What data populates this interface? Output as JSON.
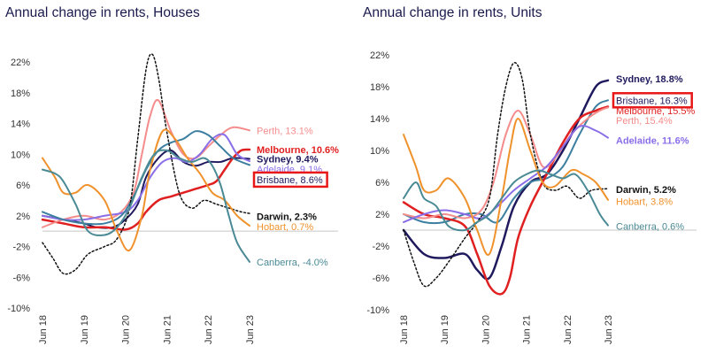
{
  "chart_data": [
    {
      "type": "line",
      "title": "Annual change in rents, Houses",
      "xlabel": "",
      "ylabel": "",
      "ylim": [
        -10,
        24
      ],
      "yticks": [
        22,
        18,
        14,
        10,
        6,
        2,
        -2,
        -6,
        -10
      ],
      "ytick_labels": [
        "22%",
        "18%",
        "14%",
        "10%",
        "6%",
        "2%",
        "-2%",
        "-6%",
        "-10%"
      ],
      "xlim": [
        2018.5,
        2023.5
      ],
      "xticks": [
        2018.5,
        2019.5,
        2020.5,
        2021.5,
        2022.5,
        2023.5
      ],
      "xtick_labels": [
        "Jun 18",
        "Jun 19",
        "Jun 20",
        "Jun 21",
        "Jun 22",
        "Jun 23"
      ],
      "zero_line": true,
      "grid": false,
      "series": [
        {
          "name": "Sydney",
          "color": "#1f1a5e",
          "style": "solid",
          "width": 2,
          "x": [
            2018.5,
            2019.0,
            2019.5,
            2019.8,
            2020.2,
            2020.5,
            2020.8,
            2021.0,
            2021.3,
            2021.6,
            2021.9,
            2022.2,
            2022.5,
            2022.8,
            2023.1,
            2023.5
          ],
          "values": [
            2.0,
            1.5,
            1.0,
            0.5,
            0.5,
            1.5,
            3.5,
            7.0,
            9.5,
            10.5,
            9.0,
            8.5,
            9.0,
            9.0,
            9.5,
            9.4
          ]
        },
        {
          "name": "Melbourne",
          "color": "#e02020",
          "style": "solid",
          "width": 2.5,
          "x": [
            2018.5,
            2019.0,
            2019.5,
            2020.0,
            2020.5,
            2020.8,
            2021.0,
            2021.3,
            2021.6,
            2021.9,
            2022.2,
            2022.5,
            2022.7,
            2022.9,
            2023.1,
            2023.3,
            2023.5
          ],
          "values": [
            1.5,
            1.0,
            0.5,
            0.5,
            0.2,
            1.0,
            2.5,
            4.0,
            4.5,
            5.0,
            5.5,
            6.0,
            6.5,
            8.0,
            9.5,
            10.5,
            10.6
          ]
        },
        {
          "name": "Perth",
          "color": "#f48c8c",
          "style": "solid",
          "width": 2,
          "x": [
            2018.5,
            2019.0,
            2019.5,
            2020.0,
            2020.4,
            2020.7,
            2020.9,
            2021.1,
            2021.3,
            2021.6,
            2021.9,
            2022.2,
            2022.5,
            2022.8,
            2023.1,
            2023.5
          ],
          "values": [
            0.5,
            1.5,
            2.0,
            1.5,
            2.5,
            5.0,
            10.0,
            15.0,
            17.0,
            13.0,
            10.0,
            9.5,
            11.0,
            12.5,
            13.5,
            13.1
          ]
        },
        {
          "name": "Adelaide",
          "color": "#8a6ee8",
          "style": "solid",
          "width": 2,
          "x": [
            2018.5,
            2019.0,
            2019.5,
            2020.0,
            2020.5,
            2020.8,
            2021.1,
            2021.4,
            2021.7,
            2022.0,
            2022.3,
            2022.6,
            2022.9,
            2023.2,
            2023.5
          ],
          "values": [
            2.0,
            1.5,
            1.5,
            2.0,
            2.5,
            4.0,
            7.0,
            9.0,
            9.5,
            9.0,
            10.0,
            12.0,
            12.5,
            10.0,
            9.1
          ]
        },
        {
          "name": "Brisbane",
          "color": "#3d7fa0",
          "style": "solid",
          "width": 2,
          "x": [
            2018.5,
            2019.0,
            2019.5,
            2020.0,
            2020.4,
            2020.7,
            2021.0,
            2021.3,
            2021.6,
            2021.9,
            2022.2,
            2022.5,
            2022.8,
            2023.1,
            2023.5
          ],
          "values": [
            2.5,
            1.5,
            1.0,
            1.0,
            2.0,
            4.5,
            8.0,
            10.5,
            11.5,
            12.0,
            13.0,
            12.5,
            11.0,
            9.5,
            8.6
          ]
        },
        {
          "name": "Darwin",
          "color": "#111111",
          "style": "dotted",
          "width": 1.5,
          "x": [
            2018.5,
            2018.75,
            2019.0,
            2019.3,
            2019.6,
            2020.0,
            2020.3,
            2020.6,
            2020.8,
            2021.0,
            2021.15,
            2021.3,
            2021.5,
            2021.8,
            2022.1,
            2022.4,
            2022.7,
            2023.0,
            2023.3,
            2023.5
          ],
          "values": [
            -1.5,
            -3.5,
            -5.5,
            -5.0,
            -3.0,
            -2.0,
            -1.0,
            3.0,
            12.0,
            21.0,
            23.0,
            20.0,
            13.0,
            5.0,
            3.0,
            4.0,
            3.5,
            3.0,
            2.5,
            2.3
          ]
        },
        {
          "name": "Hobart",
          "color": "#f0922c",
          "style": "solid",
          "width": 2,
          "x": [
            2018.5,
            2018.8,
            2019.0,
            2019.3,
            2019.6,
            2020.0,
            2020.3,
            2020.6,
            2020.9,
            2021.1,
            2021.4,
            2021.7,
            2022.0,
            2022.3,
            2022.6,
            2022.9,
            2023.2,
            2023.5
          ],
          "values": [
            9.5,
            7.0,
            5.0,
            5.0,
            6.0,
            4.0,
            0.0,
            -2.5,
            2.0,
            8.0,
            13.0,
            12.0,
            9.5,
            7.5,
            5.0,
            4.0,
            2.0,
            0.7
          ]
        },
        {
          "name": "Canberra",
          "color": "#4a8a95",
          "style": "solid",
          "width": 2,
          "x": [
            2018.5,
            2018.8,
            2019.0,
            2019.3,
            2019.6,
            2020.0,
            2020.3,
            2020.6,
            2020.9,
            2021.2,
            2021.5,
            2021.8,
            2022.1,
            2022.4,
            2022.6,
            2022.8,
            2023.0,
            2023.2,
            2023.5
          ],
          "values": [
            8.0,
            7.5,
            6.5,
            3.5,
            0.0,
            -0.5,
            0.5,
            3.0,
            7.0,
            10.0,
            10.5,
            9.5,
            9.0,
            9.5,
            8.5,
            6.0,
            2.0,
            -1.5,
            -4.0
          ]
        }
      ],
      "end_labels": [
        {
          "text": "Perth, 13.1%",
          "color": "#f48c8c",
          "bold": false,
          "ypos": 13.1
        },
        {
          "text": "Melbourne, 10.6%",
          "color": "#e02020",
          "bold": true,
          "ypos": 10.6
        },
        {
          "text": "Sydney, 9.4%",
          "color": "#1f1a5e",
          "bold": true,
          "ypos": 9.4
        },
        {
          "text": "Adelaide, 9.1%",
          "color": "#8a6ee8",
          "bold": false,
          "ypos": 8.1
        },
        {
          "text": "Brisbane, 8.6%",
          "color": "#1f1a5e",
          "bold": false,
          "ypos": 6.7,
          "boxed": true
        },
        {
          "text": "Darwin, 2.3%",
          "color": "#111111",
          "bold": true,
          "ypos": 1.9
        },
        {
          "text": "Hobart, 0.7%",
          "color": "#f0922c",
          "bold": false,
          "ypos": 0.6
        },
        {
          "text": "Canberra, -4.0%",
          "color": "#4a8a95",
          "bold": false,
          "ypos": -4.0
        }
      ]
    },
    {
      "type": "line",
      "title": "Annual change in rents, Units",
      "xlabel": "",
      "ylabel": "",
      "ylim": [
        -10,
        22
      ],
      "yticks": [
        22,
        18,
        14,
        10,
        6,
        2,
        -2,
        -6,
        -10
      ],
      "ytick_labels": [
        "22%",
        "18%",
        "14%",
        "10%",
        "6%",
        "2%",
        "-2%",
        "-6%",
        "-10%"
      ],
      "xlim": [
        2018.5,
        2023.5
      ],
      "xticks": [
        2018.5,
        2019.5,
        2020.5,
        2021.5,
        2022.5,
        2023.5
      ],
      "xtick_labels": [
        "Jun 18",
        "Jun 19",
        "Jun 20",
        "Jun 21",
        "Jun 22",
        "Jun 23"
      ],
      "zero_line": true,
      "grid": false,
      "series": [
        {
          "name": "Sydney",
          "color": "#1f1a5e",
          "style": "solid",
          "width": 2.5,
          "x": [
            2018.5,
            2019.0,
            2019.5,
            2020.0,
            2020.3,
            2020.6,
            2020.9,
            2021.2,
            2021.6,
            2022.0,
            2022.4,
            2022.8,
            2023.2,
            2023.5
          ],
          "values": [
            0.0,
            -3.0,
            -3.5,
            -3.0,
            -5.0,
            -6.0,
            -2.0,
            3.0,
            6.0,
            7.0,
            10.0,
            14.0,
            18.0,
            18.8
          ]
        },
        {
          "name": "Brisbane",
          "color": "#3d7fa0",
          "style": "solid",
          "width": 2,
          "x": [
            2018.5,
            2019.0,
            2019.5,
            2020.0,
            2020.4,
            2020.8,
            2021.2,
            2021.6,
            2022.0,
            2022.4,
            2022.8,
            2023.2,
            2023.5
          ],
          "values": [
            2.0,
            1.0,
            1.0,
            2.0,
            2.0,
            1.0,
            4.0,
            6.0,
            6.5,
            8.0,
            12.0,
            15.5,
            16.3
          ]
        },
        {
          "name": "Melbourne",
          "color": "#e02020",
          "style": "solid",
          "width": 2.5,
          "x": [
            2018.5,
            2019.0,
            2019.5,
            2020.0,
            2020.3,
            2020.6,
            2020.9,
            2021.1,
            2021.3,
            2021.6,
            2022.0,
            2022.4,
            2022.8,
            2023.2,
            2023.5
          ],
          "values": [
            3.5,
            2.0,
            1.5,
            0.5,
            -3.0,
            -7.0,
            -8.0,
            -6.0,
            -1.0,
            3.0,
            7.0,
            11.0,
            14.0,
            15.0,
            15.5
          ]
        },
        {
          "name": "Perth",
          "color": "#f48c8c",
          "style": "solid",
          "width": 2,
          "x": [
            2018.5,
            2019.0,
            2019.5,
            2020.0,
            2020.4,
            2020.7,
            2021.0,
            2021.3,
            2021.6,
            2021.9,
            2022.2,
            2022.6,
            2023.0,
            2023.3,
            2023.5
          ],
          "values": [
            2.0,
            1.5,
            2.0,
            1.5,
            2.5,
            6.0,
            12.0,
            15.0,
            12.0,
            8.0,
            9.0,
            12.0,
            14.0,
            15.0,
            15.4
          ]
        },
        {
          "name": "Adelaide",
          "color": "#8a6ee8",
          "style": "solid",
          "width": 2,
          "x": [
            2018.5,
            2019.0,
            2019.5,
            2020.0,
            2020.4,
            2020.8,
            2021.2,
            2021.6,
            2022.0,
            2022.4,
            2022.8,
            2023.2,
            2023.5
          ],
          "values": [
            1.0,
            2.0,
            2.5,
            2.0,
            1.5,
            3.0,
            5.0,
            6.5,
            8.0,
            10.5,
            13.0,
            12.5,
            11.6
          ]
        },
        {
          "name": "Darwin",
          "color": "#111111",
          "style": "dotted",
          "width": 1.5,
          "x": [
            2018.5,
            2018.75,
            2019.0,
            2019.3,
            2019.6,
            2020.0,
            2020.3,
            2020.6,
            2020.8,
            2021.0,
            2021.2,
            2021.4,
            2021.6,
            2021.9,
            2022.2,
            2022.5,
            2022.8,
            2023.1,
            2023.5
          ],
          "values": [
            0.0,
            -4.0,
            -7.0,
            -6.0,
            -4.0,
            -1.0,
            1.0,
            4.0,
            12.0,
            18.0,
            21.0,
            19.0,
            12.0,
            6.0,
            5.0,
            5.5,
            4.0,
            5.0,
            5.2
          ]
        },
        {
          "name": "Hobart",
          "color": "#f0922c",
          "style": "solid",
          "width": 2,
          "x": [
            2018.5,
            2018.8,
            2019.0,
            2019.3,
            2019.6,
            2020.0,
            2020.3,
            2020.6,
            2020.9,
            2021.1,
            2021.3,
            2021.6,
            2021.9,
            2022.2,
            2022.6,
            2022.9,
            2023.2,
            2023.5
          ],
          "values": [
            12.0,
            8.0,
            5.0,
            5.0,
            6.5,
            4.0,
            0.0,
            -3.0,
            4.0,
            10.0,
            14.0,
            10.0,
            6.0,
            5.5,
            7.5,
            7.0,
            6.0,
            3.8
          ]
        },
        {
          "name": "Canberra",
          "color": "#4a8a95",
          "style": "solid",
          "width": 2,
          "x": [
            2018.5,
            2018.8,
            2019.0,
            2019.3,
            2019.6,
            2020.0,
            2020.3,
            2020.6,
            2020.9,
            2021.2,
            2021.5,
            2021.8,
            2022.1,
            2022.4,
            2022.7,
            2023.0,
            2023.3,
            2023.5
          ],
          "values": [
            4.0,
            6.0,
            4.0,
            3.0,
            0.5,
            0.0,
            1.0,
            2.0,
            4.0,
            6.0,
            7.0,
            7.5,
            7.0,
            6.5,
            7.0,
            5.0,
            2.0,
            0.6
          ]
        }
      ],
      "end_labels": [
        {
          "text": "Sydney, 18.8%",
          "color": "#1f1a5e",
          "bold": true,
          "ypos": 19.0
        },
        {
          "text": "Brisbane, 16.3%",
          "color": "#1f1a5e",
          "bold": false,
          "ypos": 16.3,
          "boxed": true
        },
        {
          "text": "Melbourne, 15.5%",
          "color": "#e02020",
          "bold": false,
          "ypos": 15.0
        },
        {
          "text": "Perth, 15.4%",
          "color": "#f48c8c",
          "bold": false,
          "ypos": 13.8
        },
        {
          "text": "Adelaide, 11.6%",
          "color": "#8a6ee8",
          "bold": true,
          "ypos": 11.3
        },
        {
          "text": "Darwin, 5.2%",
          "color": "#111111",
          "bold": true,
          "ypos": 5.1
        },
        {
          "text": "Hobart, 3.8%",
          "color": "#f0922c",
          "bold": false,
          "ypos": 3.6
        },
        {
          "text": "Canberra, 0.6%",
          "color": "#4a8a95",
          "bold": false,
          "ypos": 0.5
        }
      ]
    }
  ]
}
